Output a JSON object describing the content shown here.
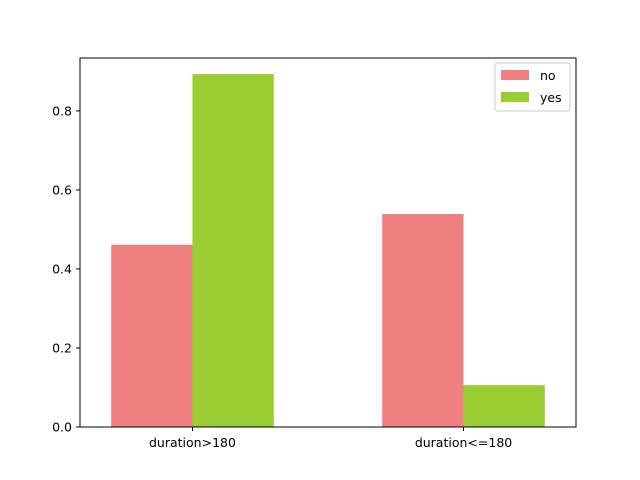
{
  "chart_data": {
    "type": "bar",
    "categories": [
      "duration>180",
      "duration<=180"
    ],
    "series": [
      {
        "name": "no",
        "values": [
          0.461,
          0.539
        ],
        "color": "#f08080"
      },
      {
        "name": "yes",
        "values": [
          0.893,
          0.106
        ],
        "color": "#9acd32"
      }
    ],
    "ylim": [
      0,
      0.9339
    ],
    "yticks": [
      0.0,
      0.2,
      0.4,
      0.6,
      0.8
    ],
    "ytick_labels": [
      "0.0",
      "0.2",
      "0.4",
      "0.6",
      "0.8"
    ],
    "legend_position": "top-right",
    "grid": false
  }
}
